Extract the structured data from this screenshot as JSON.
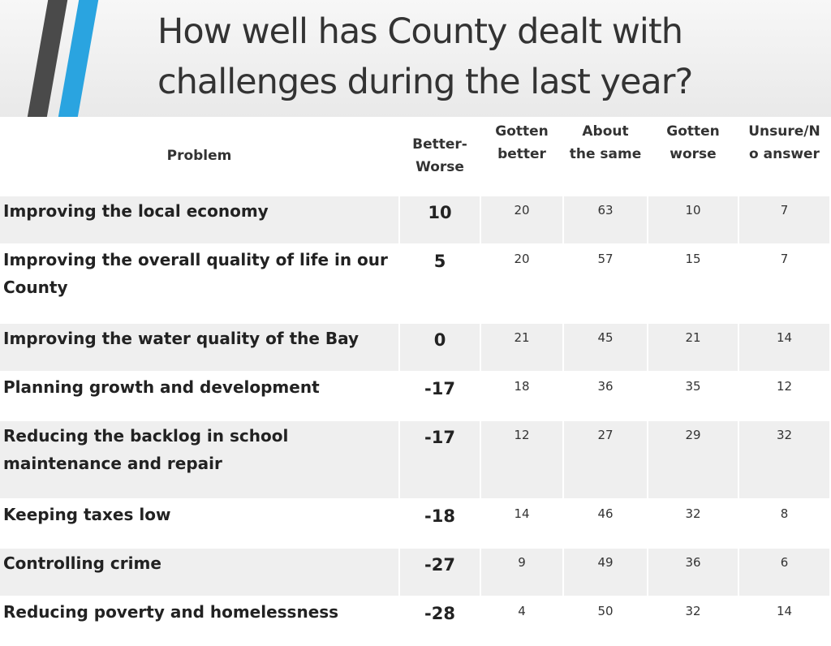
{
  "title_line1": "How well has County dealt with",
  "title_line2": "challenges during the last year?",
  "colors": {
    "stripe_dark": "#4a4a4a",
    "stripe_blue": "#2aa4e0",
    "row_shade": "#efefef"
  },
  "chart_data": {
    "type": "table",
    "title": "How well has County dealt with challenges during the last year?",
    "columns": {
      "problem": "Problem",
      "net_1": "Better-",
      "net_2": "Worse",
      "better_1": "Gotten",
      "better_2": "better",
      "same_1": "About",
      "same_2": "the same",
      "worse_1": "Gotten",
      "worse_2": "worse",
      "unsure_1": "Unsure/N",
      "unsure_2": "o answer"
    },
    "rows": [
      {
        "problem": "Improving the local economy",
        "net": "10",
        "better": "20",
        "same": "63",
        "worse": "10",
        "unsure": "7"
      },
      {
        "problem": "Improving the overall quality of life in our County",
        "net": "5",
        "better": "20",
        "same": "57",
        "worse": "15",
        "unsure": "7"
      },
      {
        "problem": "Improving the water quality of the Bay",
        "net": "0",
        "better": "21",
        "same": "45",
        "worse": "21",
        "unsure": "14"
      },
      {
        "problem": "Planning growth and development",
        "net": "-17",
        "better": "18",
        "same": "36",
        "worse": "35",
        "unsure": "12"
      },
      {
        "problem": "Reducing the backlog in school maintenance and repair",
        "net": "-17",
        "better": "12",
        "same": "27",
        "worse": "29",
        "unsure": "32"
      },
      {
        "problem": "Keeping taxes low",
        "net": "-18",
        "better": "14",
        "same": "46",
        "worse": "32",
        "unsure": "8"
      },
      {
        "problem": "Controlling crime",
        "net": "-27",
        "better": "9",
        "same": "49",
        "worse": "36",
        "unsure": "6"
      },
      {
        "problem": "Reducing poverty and homelessness",
        "net": "-28",
        "better": "4",
        "same": "50",
        "worse": "32",
        "unsure": "14"
      }
    ]
  }
}
